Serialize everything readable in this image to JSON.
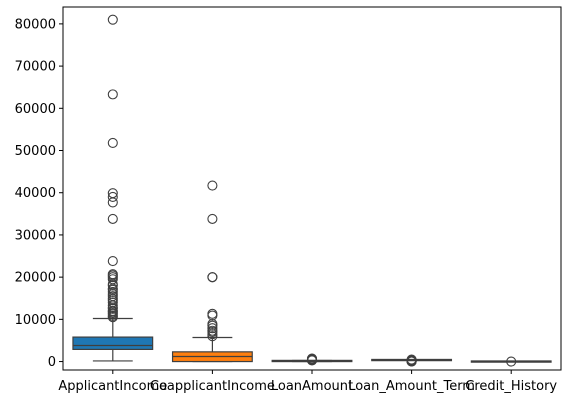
{
  "chart_data": {
    "type": "boxplot",
    "title": "",
    "xlabel": "",
    "ylabel": "",
    "ylim": [
      -2000,
      84000
    ],
    "yticks": [
      0,
      10000,
      20000,
      30000,
      40000,
      50000,
      60000,
      70000,
      80000
    ],
    "ytick_labels": [
      "0",
      "10000",
      "20000",
      "30000",
      "40000",
      "50000",
      "60000",
      "70000",
      "80000"
    ],
    "grid": false,
    "categories": [
      "ApplicantIncome",
      "CoapplicantIncome",
      "LoanAmount",
      "Loan_Amount_Term",
      "Credit_History"
    ],
    "colors": [
      "#1f77b4",
      "#ff7f0e",
      "#2ca02c",
      "#d62728",
      "#9467bd"
    ],
    "boxes": [
      {
        "name": "ApplicantIncome",
        "whisker_low": 150,
        "q1": 2880,
        "median": 3810,
        "q3": 5800,
        "whisker_high": 10200,
        "outliers": [
          10500,
          10800,
          11200,
          11500,
          11800,
          12000,
          12500,
          12800,
          13300,
          14000,
          14500,
          14900,
          15500,
          16000,
          16500,
          17000,
          17300,
          18000,
          18300,
          19500,
          20000,
          20400,
          20700,
          23800,
          33800,
          37700,
          39000,
          39900,
          51800,
          63300,
          81000
        ]
      },
      {
        "name": "CoapplicantIncome",
        "whisker_low": 0,
        "q1": 0,
        "median": 1190,
        "q3": 2300,
        "whisker_high": 5700,
        "outliers": [
          6000,
          6500,
          7000,
          7300,
          7900,
          8500,
          8900,
          10900,
          11300,
          20000,
          20000,
          33800,
          41700
        ]
      },
      {
        "name": "LoanAmount",
        "whisker_low": 9,
        "q1": 100,
        "median": 128,
        "q3": 168,
        "whisker_high": 270,
        "outliers": [
          280,
          320,
          360,
          400,
          450,
          500,
          560,
          600,
          650,
          700
        ]
      },
      {
        "name": "Loan_Amount_Term",
        "whisker_low": 360,
        "q1": 360,
        "median": 360,
        "q3": 360,
        "whisker_high": 360,
        "outliers": [
          12,
          36,
          60,
          84,
          120,
          180,
          240,
          300,
          480
        ]
      },
      {
        "name": "Credit_History",
        "whisker_low": 1,
        "q1": 1,
        "median": 1,
        "q3": 1,
        "whisker_high": 1,
        "outliers": [
          0
        ]
      }
    ]
  }
}
